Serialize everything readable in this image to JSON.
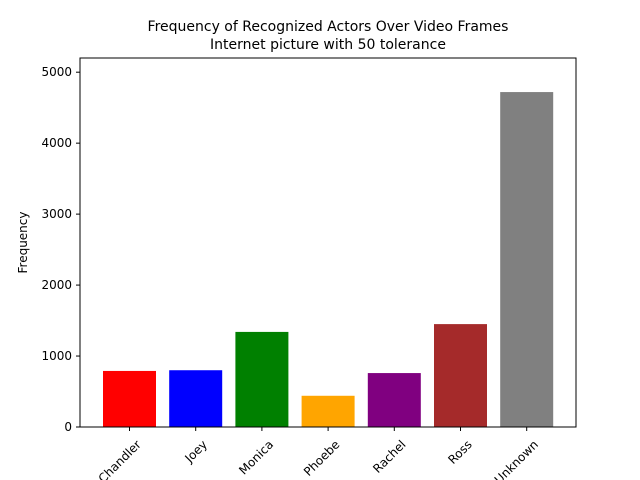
{
  "chart_data": {
    "type": "bar",
    "title": "Frequency of Recognized Actors Over Video Frames",
    "subtitle": "Internet picture with 50 tolerance",
    "xlabel": "",
    "ylabel": "Frequency",
    "categories": [
      "Chandler",
      "Joey",
      "Monica",
      "Phoebe",
      "Rachel",
      "Ross",
      "Unknown"
    ],
    "values": [
      790,
      800,
      1340,
      440,
      760,
      1450,
      4720
    ],
    "colors": [
      "#ff0000",
      "#0000ff",
      "#008000",
      "#ffa500",
      "#800080",
      "#a52a2a",
      "#808080"
    ],
    "ylim": [
      0,
      5200
    ],
    "yticks": [
      0,
      1000,
      2000,
      3000,
      4000,
      5000
    ],
    "grid": false,
    "legend": "none"
  }
}
